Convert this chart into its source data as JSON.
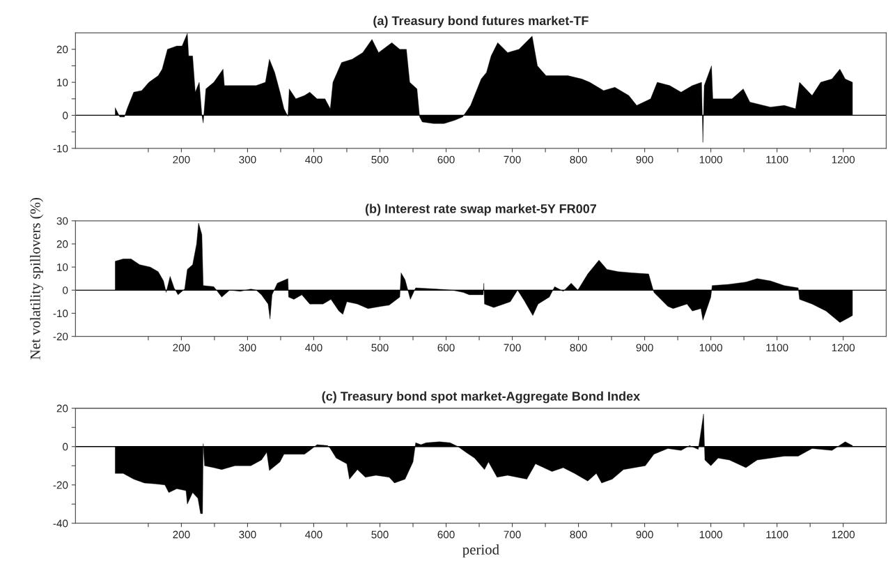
{
  "chart_data": [
    {
      "type": "area",
      "title": "(a) Treasury bond futures market-TF",
      "xlim": [
        40,
        1265
      ],
      "ylim": [
        -10,
        25
      ],
      "xticks": [
        {
          "value": 150,
          "label": null
        },
        200,
        {
          "value": 250,
          "label": null
        },
        300,
        {
          "value": 350,
          "label": null
        },
        400,
        {
          "value": 450,
          "label": null
        },
        500,
        {
          "value": 550,
          "label": null
        },
        600,
        {
          "value": 650,
          "label": null
        },
        700,
        {
          "value": 750,
          "label": null
        },
        800,
        {
          "value": 850,
          "label": null
        },
        900,
        {
          "value": 950,
          "label": null
        },
        1000,
        {
          "value": 1050,
          "label": null
        },
        1100,
        {
          "value": 1150,
          "label": null
        },
        1200
      ],
      "yticks": [
        -10,
        {
          "value": -5,
          "label": null
        },
        0,
        {
          "value": 5,
          "label": null
        },
        10,
        {
          "value": 15,
          "label": null
        },
        20
      ],
      "ref_lines": [
        {
          "axis": "y",
          "value": 0,
          "color": "#000000"
        }
      ],
      "series": [
        {
          "color": "#000000",
          "x": [
            100,
            107,
            114,
            118,
            128,
            140,
            151,
            165,
            171,
            179,
            193,
            201,
            209,
            211,
            217,
            221,
            227,
            231,
            233,
            237,
            249,
            263,
            265,
            289,
            313,
            327,
            333,
            341,
            349,
            355,
            361,
            363,
            373,
            386,
            394,
            405,
            417,
            425,
            429,
            442,
            458,
            474,
            488,
            498,
            518,
            530,
            540,
            545,
            556,
            560,
            564,
            581,
            597,
            613,
            625,
            637,
            653,
            661,
            668,
            678,
            693,
            710,
            730,
            738,
            751,
            763,
            784,
            805,
            817,
            838,
            855,
            876,
            888,
            909,
            919,
            938,
            955,
            972,
            986,
            988,
            990,
            1001,
            1003,
            1032,
            1049,
            1059,
            1090,
            1111,
            1128,
            1134,
            1153,
            1166,
            1183,
            1195,
            1203,
            1214
          ],
          "values": [
            2.3,
            -0.5,
            -0.5,
            2,
            7,
            7.5,
            10,
            12,
            14,
            20,
            21,
            21,
            24.8,
            18,
            18,
            7,
            10,
            0,
            -2.3,
            8,
            10,
            14,
            9,
            9,
            9,
            10,
            17,
            13,
            7,
            2,
            -0.3,
            8,
            5,
            6,
            7,
            5,
            5,
            2,
            10,
            16,
            17,
            19,
            23,
            19,
            22,
            20,
            20,
            10,
            8,
            -0.5,
            -2,
            -2.5,
            -2.5,
            -1.5,
            -0.5,
            3,
            11,
            13,
            18,
            22,
            19,
            20,
            24,
            15,
            12,
            12,
            12,
            11,
            10,
            7.5,
            8.5,
            6,
            3,
            5,
            10,
            9,
            7,
            9,
            10,
            -8.2,
            9,
            15,
            5,
            5,
            8,
            4,
            2.5,
            3,
            2,
            10,
            6,
            10,
            11,
            14,
            11,
            10
          ]
        }
      ]
    },
    {
      "type": "area",
      "title": "(b) Interest rate swap market-5Y FR007",
      "ylabel": "Net volatility spillovers (%)",
      "xlim": [
        40,
        1265
      ],
      "ylim": [
        -20,
        30
      ],
      "xticks": [
        {
          "value": 150,
          "label": null
        },
        200,
        {
          "value": 250,
          "label": null
        },
        300,
        {
          "value": 350,
          "label": null
        },
        400,
        {
          "value": 450,
          "label": null
        },
        500,
        {
          "value": 550,
          "label": null
        },
        600,
        {
          "value": 650,
          "label": null
        },
        700,
        {
          "value": 750,
          "label": null
        },
        800,
        {
          "value": 850,
          "label": null
        },
        900,
        {
          "value": 950,
          "label": null
        },
        1000,
        {
          "value": 1050,
          "label": null
        },
        1100,
        {
          "value": 1150,
          "label": null
        },
        1200
      ],
      "yticks": [
        -20,
        -10,
        0,
        10,
        20,
        30
      ],
      "ref_lines": [
        {
          "axis": "y",
          "value": 0,
          "color": "#000000"
        }
      ],
      "series": [
        {
          "color": "#000000",
          "x": [
            100,
            112,
            124,
            137,
            153,
            165,
            173,
            177,
            183,
            189,
            195,
            205,
            209,
            217,
            223,
            226,
            231,
            233,
            249,
            261,
            273,
            289,
            305,
            313,
            321,
            331,
            334,
            337,
            345,
            353,
            361,
            362,
            370,
            382,
            394,
            414,
            426,
            438,
            444,
            450,
            466,
            482,
            502,
            514,
            530,
            532,
            538,
            546,
            554,
            586,
            609,
            626,
            635,
            656,
            657,
            658,
            672,
            697,
            708,
            718,
            731,
            739,
            756,
            764,
            777,
            789,
            799,
            814,
            831,
            843,
            860,
            881,
            906,
            914,
            935,
            943,
            964,
            972,
            985,
            988,
            1000,
            1002,
            1027,
            1053,
            1070,
            1090,
            1111,
            1132,
            1134,
            1153,
            1174,
            1195,
            1208,
            1214
          ],
          "values": [
            12.5,
            13.5,
            13.5,
            11,
            10,
            8,
            4,
            -1,
            6,
            1,
            -2,
            0.5,
            9,
            11,
            20,
            29,
            24,
            2,
            1.5,
            -3,
            0,
            -0.5,
            0.5,
            0,
            -2,
            -6,
            -12.5,
            -2,
            3,
            4,
            5,
            -3,
            -4,
            -2,
            -6,
            -6,
            -4,
            -9,
            -10.5,
            -5,
            -6,
            -8,
            -7,
            -6.5,
            -3,
            7.5,
            4.5,
            -4,
            1,
            0.5,
            0,
            -1,
            -2,
            -2,
            3,
            -6,
            -7.5,
            -5,
            0,
            -4.5,
            -11,
            -6,
            -3,
            1.5,
            -0.5,
            3,
            0,
            7,
            13,
            9,
            8,
            7.5,
            7,
            -1,
            -7,
            -8,
            -6,
            -9,
            -8,
            -13,
            -3,
            2,
            2.5,
            3.5,
            5,
            4,
            2,
            1,
            -4,
            -6,
            -9,
            -14,
            -12,
            -11
          ]
        }
      ]
    },
    {
      "type": "area",
      "title": "(c) Treasury bond spot market-Aggregate Bond Index",
      "xlabel": "period",
      "xlim": [
        40,
        1265
      ],
      "ylim": [
        -40,
        20
      ],
      "xticks": [
        {
          "value": 150,
          "label": null
        },
        200,
        {
          "value": 250,
          "label": null
        },
        300,
        {
          "value": 350,
          "label": null
        },
        400,
        {
          "value": 450,
          "label": null
        },
        500,
        {
          "value": 550,
          "label": null
        },
        600,
        {
          "value": 650,
          "label": null
        },
        700,
        {
          "value": 750,
          "label": null
        },
        800,
        {
          "value": 850,
          "label": null
        },
        900,
        {
          "value": 950,
          "label": null
        },
        1000,
        {
          "value": 1050,
          "label": null
        },
        1100,
        {
          "value": 1150,
          "label": null
        },
        1200
      ],
      "yticks": [
        -40,
        {
          "value": -30,
          "label": null
        },
        -20,
        {
          "value": -10,
          "label": null
        },
        0,
        {
          "value": 10,
          "label": null
        },
        20
      ],
      "ref_lines": [
        {
          "axis": "y",
          "value": 0,
          "color": "#000000"
        }
      ],
      "series": [
        {
          "color": "#000000",
          "x": [
            100,
            112,
            128,
            144,
            161,
            175,
            181,
            193,
            207,
            209,
            217,
            225,
            229,
            232,
            233,
            235,
            249,
            261,
            281,
            305,
            321,
            329,
            333,
            349,
            355,
            365,
            386,
            394,
            405,
            421,
            425,
            434,
            450,
            454,
            466,
            478,
            494,
            514,
            522,
            538,
            550,
            554,
            562,
            570,
            590,
            606,
            618,
            630,
            643,
            658,
            664,
            677,
            693,
            722,
            735,
            760,
            777,
            794,
            814,
            827,
            835,
            851,
            868,
            901,
            914,
            935,
            955,
            968,
            981,
            989,
            991,
            1000,
            1011,
            1028,
            1053,
            1070,
            1111,
            1132,
            1153,
            1183,
            1203,
            1214
          ],
          "values": [
            -14,
            -14,
            -17,
            -19,
            -19.5,
            -20,
            -24,
            -22,
            -23,
            -30,
            -24,
            -27,
            -35,
            -35,
            1.5,
            -10,
            -11,
            -12,
            -10,
            -10,
            -7,
            -3,
            -12.5,
            -8,
            -4,
            -4,
            -4,
            -2,
            1,
            0.5,
            -1,
            -6,
            -9,
            -17,
            -12,
            -16,
            -15,
            -16,
            -19,
            -17,
            -8,
            2,
            1,
            2,
            2.5,
            2,
            0,
            -3,
            -6,
            -12,
            -8,
            -16,
            -15,
            -17,
            -9,
            -13,
            -11,
            -14,
            -18,
            -14,
            -19,
            -17,
            -12,
            -10,
            -4,
            -1,
            -2,
            0.5,
            -1.5,
            17,
            -7,
            -10,
            -6,
            -7,
            -11,
            -7,
            -5,
            -5,
            -1,
            -2,
            2.5,
            0.5
          ]
        }
      ]
    }
  ]
}
